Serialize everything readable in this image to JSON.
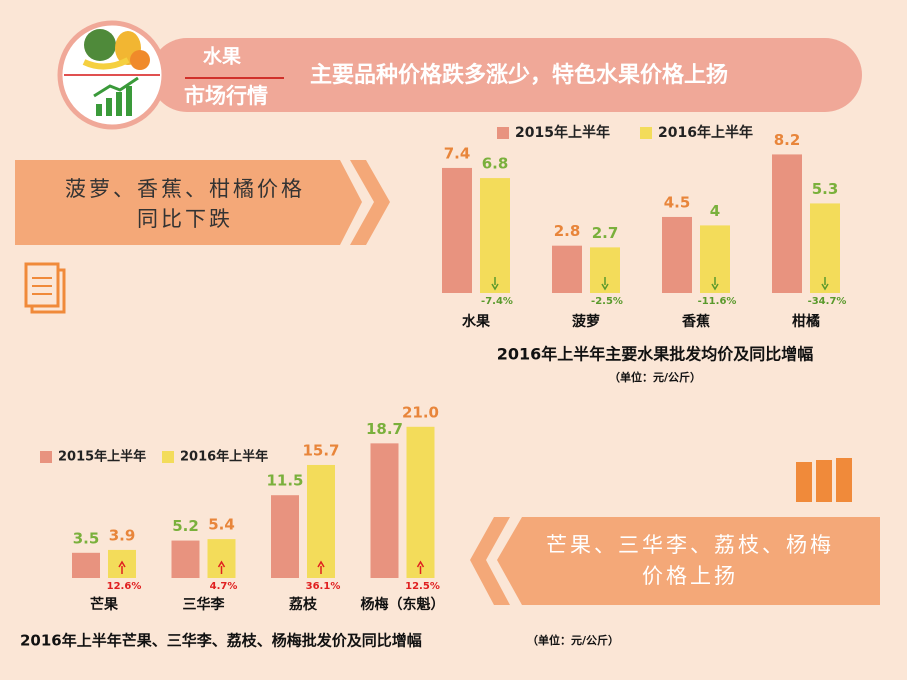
{
  "header": {
    "category": "水果",
    "section": "市场行情",
    "headline": "主要品种价格跌多涨少，特色水果价格上扬"
  },
  "callouts": [
    {
      "lines": [
        "菠萝、香蕉、柑橘价格",
        "同比下跌"
      ]
    },
    {
      "lines": [
        "芒果、三华李、荔枝、杨梅",
        "价格上扬"
      ]
    }
  ],
  "chart_data": [
    {
      "type": "bar",
      "title": "2016年上半年主要水果批发均价及同比增幅",
      "subtitle": "（单位：元/公斤）",
      "categories": [
        "水果",
        "菠萝",
        "香蕉",
        "柑橘"
      ],
      "series": [
        {
          "name": "2015年上半年",
          "color": "#e8937f",
          "label_color": "#e8853a",
          "values": [
            7.4,
            2.8,
            4.5,
            8.2
          ]
        },
        {
          "name": "2016年上半年",
          "color": "#f3dc5a",
          "label_color": "#7ab03c",
          "values": [
            6.8,
            2.7,
            4.0,
            5.3
          ]
        }
      ],
      "change": {
        "color": "#5a9a2c",
        "values": [
          -7.4,
          -2.5,
          -11.6,
          -34.7
        ],
        "value_labels": [
          "-7.4%",
          "-2.5%",
          "-11.6%",
          "-34.7%"
        ]
      },
      "ylim": [
        0,
        10
      ]
    },
    {
      "type": "bar",
      "title": "2016年上半年芒果、三华李、荔枝、杨梅批发价及同比增幅",
      "subtitle": "（单位：元/公斤）",
      "categories": [
        "芒果",
        "三华李",
        "荔枝",
        "杨梅（东魁）"
      ],
      "series": [
        {
          "name": "2015年上半年",
          "color": "#e8937f",
          "label_color": "#7ab03c",
          "values": [
            3.5,
            5.2,
            11.5,
            18.7
          ]
        },
        {
          "name": "2016年上半年",
          "color": "#f3dc5a",
          "label_color": "#e8853a",
          "values": [
            3.9,
            5.4,
            15.7,
            21.0
          ],
          "value_labels": [
            "3.9",
            "5.4",
            "15.7",
            "21.0"
          ]
        }
      ],
      "change": {
        "color": "#e02020",
        "values": [
          12.6,
          4.7,
          36.1,
          12.5
        ],
        "value_labels": [
          "12.6%",
          "4.7%",
          "36.1%",
          "12.5%"
        ]
      },
      "ylim": [
        0,
        25
      ]
    }
  ]
}
